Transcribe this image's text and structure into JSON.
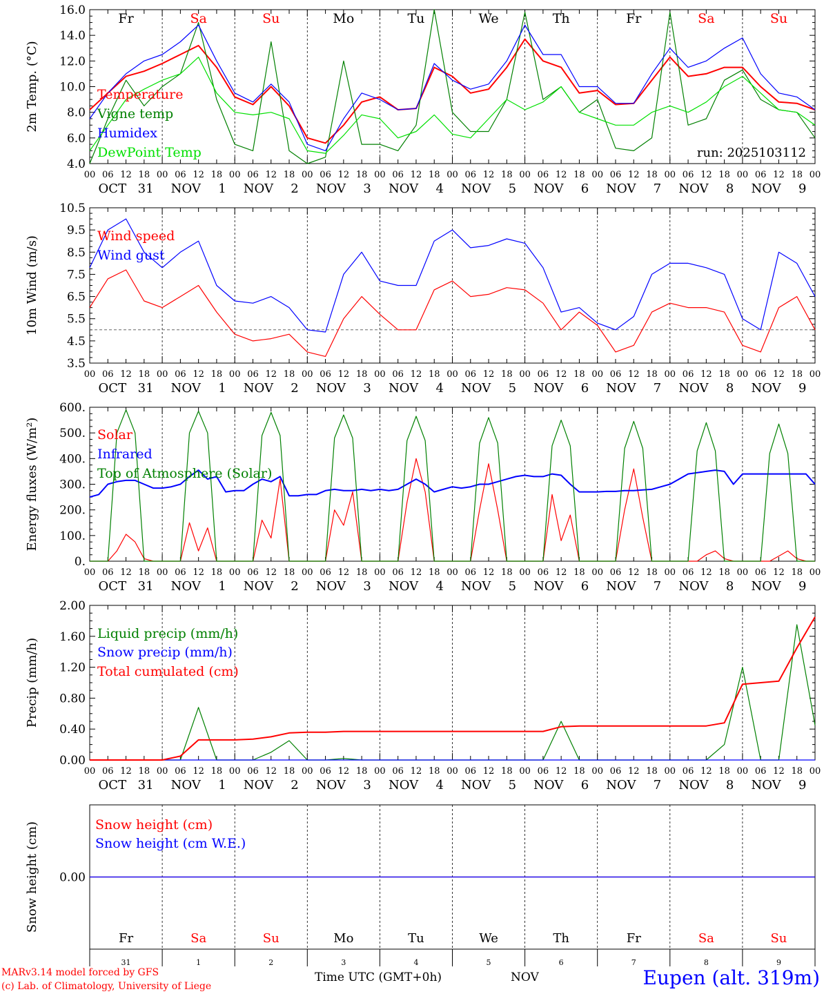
{
  "colors": {
    "red": "#ff0000",
    "green": "#008000",
    "blue": "#0000ff",
    "lightgreen": "#00e000",
    "grey": "#666666"
  },
  "days": [
    {
      "abbr": "Fr",
      "color": "#000000",
      "month": "OCT",
      "date": "31"
    },
    {
      "abbr": "Sa",
      "color": "#ff0000",
      "month": "NOV",
      "date": "1"
    },
    {
      "abbr": "Su",
      "color": "#ff0000",
      "month": "NOV",
      "date": "2"
    },
    {
      "abbr": "Mo",
      "color": "#000000",
      "month": "NOV",
      "date": "3"
    },
    {
      "abbr": "Tu",
      "color": "#000000",
      "month": "NOV",
      "date": "4"
    },
    {
      "abbr": "We",
      "color": "#000000",
      "month": "NOV",
      "date": "5"
    },
    {
      "abbr": "Th",
      "color": "#000000",
      "month": "NOV",
      "date": "6"
    },
    {
      "abbr": "Fr",
      "color": "#000000",
      "month": "NOV",
      "date": "7"
    },
    {
      "abbr": "Sa",
      "color": "#ff0000",
      "month": "NOV",
      "date": "8"
    },
    {
      "abbr": "Su",
      "color": "#ff0000",
      "month": "NOV",
      "date": "9"
    }
  ],
  "hour_ticks": [
    "00",
    "06",
    "12",
    "18"
  ],
  "footer": {
    "model": "MARv3.14 model forced by GFS",
    "lab": "(c) Lab. of Climatology, University of Liege",
    "time_label": "Time UTC (GMT+0h)",
    "month": "NOV",
    "station": "Eupen (alt. 319m)"
  },
  "chart_data": [
    {
      "type": "line",
      "ylabel": "2m Temp. (°C)",
      "ylim": [
        4,
        16
      ],
      "yticks": [
        "4.0",
        "6.0",
        "8.0",
        "10.0",
        "12.0",
        "14.0",
        "16.0"
      ],
      "annotation": "run: 2025103112",
      "x_hours": [
        0,
        6,
        12,
        18,
        24,
        30,
        36,
        42,
        48,
        54,
        60,
        66,
        72,
        78,
        84,
        90,
        96,
        102,
        108,
        114,
        120,
        126,
        132,
        138,
        144,
        150,
        156,
        162,
        168,
        174,
        180,
        186,
        192,
        198,
        204,
        210,
        216,
        222,
        228,
        234,
        240
      ],
      "series": [
        {
          "name": "Temperature",
          "color": "#ff0000",
          "values": [
            8.2,
            9.5,
            10.8,
            11.2,
            11.8,
            12.5,
            13.2,
            11.5,
            9.2,
            8.6,
            10.0,
            8.5,
            6.0,
            5.6,
            7.0,
            8.8,
            9.2,
            8.2,
            8.3,
            11.5,
            10.8,
            9.5,
            9.8,
            11.5,
            13.7,
            12.0,
            11.5,
            9.5,
            9.7,
            8.6,
            8.7,
            10.5,
            12.3,
            10.8,
            11.0,
            11.5,
            11.5,
            10.0,
            8.8,
            8.7,
            8.2
          ]
        },
        {
          "name": "Vigne temp",
          "color": "#008000",
          "values": [
            4.0,
            7.5,
            10.5,
            8.5,
            10.0,
            11.0,
            15.0,
            9.0,
            5.5,
            5.0,
            13.5,
            5.0,
            3.5,
            4.5,
            12.0,
            5.5,
            5.5,
            5.0,
            7.0,
            16.0,
            8.0,
            6.5,
            6.5,
            9.0,
            15.8,
            9.0,
            10.0,
            8.0,
            9.0,
            5.2,
            5.0,
            6.0,
            15.8,
            7.0,
            7.5,
            10.5,
            11.3,
            9.0,
            8.2,
            8.0,
            6.0
          ]
        },
        {
          "name": "Humidex",
          "color": "#0000ff",
          "values": [
            7.5,
            9.5,
            11.0,
            12.0,
            12.5,
            13.5,
            14.8,
            12.0,
            9.5,
            8.8,
            10.2,
            8.8,
            5.5,
            5.0,
            7.5,
            9.5,
            9.0,
            8.2,
            8.3,
            11.8,
            10.5,
            9.8,
            10.2,
            12.0,
            14.8,
            12.5,
            12.5,
            10.0,
            10.0,
            8.7,
            8.7,
            11.0,
            13.0,
            11.5,
            12.0,
            13.0,
            13.8,
            11.0,
            9.5,
            9.2,
            8.2
          ]
        },
        {
          "name": "DewPoint Temp",
          "color": "#00e000",
          "values": [
            5.0,
            7.0,
            9.0,
            9.8,
            10.5,
            11.0,
            12.3,
            9.5,
            8.0,
            7.8,
            8.0,
            7.5,
            5.0,
            4.8,
            6.2,
            7.8,
            7.5,
            6.0,
            6.5,
            7.8,
            6.3,
            6.0,
            7.5,
            9.0,
            8.2,
            8.8,
            10.0,
            8.0,
            7.5,
            7.0,
            7.0,
            8.0,
            8.5,
            8.0,
            8.8,
            10.0,
            10.8,
            9.5,
            8.2,
            8.0,
            7.0
          ]
        }
      ]
    },
    {
      "type": "line",
      "ylabel": "10m Wind (m/s)",
      "ylim": [
        3.5,
        10.5
      ],
      "yticks": [
        "3.5",
        "4.5",
        "5.5",
        "6.5",
        "7.5",
        "8.5",
        "9.5",
        "10.5"
      ],
      "reference_line": 5.0,
      "x_hours": [
        0,
        6,
        12,
        18,
        24,
        30,
        36,
        42,
        48,
        54,
        60,
        66,
        72,
        78,
        84,
        90,
        96,
        102,
        108,
        114,
        120,
        126,
        132,
        138,
        144,
        150,
        156,
        162,
        168,
        174,
        180,
        186,
        192,
        198,
        204,
        210,
        216,
        222,
        228,
        234,
        240
      ],
      "series": [
        {
          "name": "Wind speed",
          "color": "#ff0000",
          "values": [
            6.0,
            7.3,
            7.7,
            6.3,
            6.0,
            6.5,
            7.0,
            5.8,
            4.8,
            4.5,
            4.6,
            4.8,
            4.0,
            3.8,
            5.5,
            6.5,
            5.7,
            5.0,
            5.0,
            6.8,
            7.2,
            6.5,
            6.6,
            6.9,
            6.8,
            6.2,
            5.0,
            5.8,
            5.2,
            4.0,
            4.3,
            5.8,
            6.2,
            6.0,
            6.0,
            5.8,
            4.3,
            4.0,
            6.0,
            6.5,
            5.0
          ]
        },
        {
          "name": "Wind gust",
          "color": "#0000ff",
          "values": [
            7.8,
            9.5,
            10.0,
            8.5,
            7.8,
            8.5,
            9.0,
            7.0,
            6.3,
            6.2,
            6.5,
            6.0,
            5.0,
            4.9,
            7.5,
            8.5,
            7.2,
            7.0,
            7.0,
            9.0,
            9.5,
            8.7,
            8.8,
            9.1,
            8.9,
            7.8,
            5.8,
            6.0,
            5.3,
            5.0,
            5.6,
            7.5,
            8.0,
            8.0,
            7.8,
            7.5,
            5.5,
            5.0,
            8.5,
            8.0,
            6.5
          ]
        }
      ]
    },
    {
      "type": "line",
      "ylabel": "Energy fluxes (W/m²)",
      "ylim": [
        0,
        600
      ],
      "yticks": [
        "0.",
        "100.",
        "200.",
        "300.",
        "400.",
        "500.",
        "600."
      ],
      "x_hours": [
        0,
        3,
        6,
        9,
        12,
        15,
        18,
        21,
        24,
        27,
        30,
        33,
        36,
        39,
        42,
        45,
        48,
        51,
        54,
        57,
        60,
        63,
        66,
        69,
        72,
        75,
        78,
        81,
        84,
        87,
        90,
        93,
        96,
        99,
        102,
        105,
        108,
        111,
        114,
        117,
        120,
        123,
        126,
        129,
        132,
        135,
        138,
        141,
        144,
        147,
        150,
        153,
        156,
        159,
        162,
        165,
        168,
        171,
        174,
        177,
        180,
        183,
        186,
        189,
        192,
        195,
        198,
        201,
        204,
        207,
        210,
        213,
        216,
        219,
        222,
        225,
        228,
        231,
        234,
        237,
        240
      ],
      "series": [
        {
          "name": "Solar",
          "color": "#ff0000",
          "values": [
            0,
            0,
            0,
            40,
            105,
            75,
            10,
            0,
            0,
            0,
            0,
            150,
            40,
            130,
            0,
            0,
            0,
            0,
            0,
            160,
            90,
            320,
            0,
            0,
            0,
            0,
            0,
            200,
            140,
            270,
            0,
            0,
            0,
            0,
            0,
            230,
            400,
            270,
            0,
            0,
            0,
            0,
            0,
            200,
            380,
            200,
            0,
            0,
            0,
            0,
            0,
            260,
            80,
            180,
            0,
            0,
            0,
            0,
            0,
            200,
            360,
            170,
            0,
            0,
            0,
            0,
            0,
            0,
            25,
            40,
            10,
            0,
            0,
            0,
            0,
            0,
            20,
            40,
            10,
            0,
            0
          ]
        },
        {
          "name": "Infrared",
          "color": "#0000ff",
          "values": [
            250,
            260,
            300,
            310,
            315,
            315,
            300,
            285,
            285,
            290,
            300,
            330,
            355,
            320,
            330,
            270,
            275,
            275,
            300,
            320,
            310,
            330,
            255,
            255,
            260,
            260,
            275,
            280,
            275,
            275,
            280,
            275,
            280,
            275,
            280,
            300,
            320,
            300,
            270,
            280,
            290,
            285,
            290,
            300,
            300,
            310,
            320,
            330,
            335,
            330,
            330,
            340,
            335,
            300,
            270,
            270,
            270,
            272,
            272,
            275,
            275,
            278,
            280,
            290,
            300,
            320,
            340,
            345,
            350,
            355,
            350,
            300,
            340,
            340,
            340,
            340,
            340,
            340,
            340,
            340,
            300
          ]
        },
        {
          "name": "Top of Atmosphere (Solar)",
          "color": "#008000",
          "values": [
            0,
            0,
            0,
            500,
            590,
            500,
            0,
            0,
            0,
            0,
            0,
            500,
            585,
            500,
            0,
            0,
            0,
            0,
            0,
            490,
            580,
            490,
            0,
            0,
            0,
            0,
            0,
            480,
            570,
            480,
            0,
            0,
            0,
            0,
            0,
            470,
            565,
            470,
            0,
            0,
            0,
            0,
            0,
            460,
            560,
            460,
            0,
            0,
            0,
            0,
            0,
            450,
            550,
            450,
            0,
            0,
            0,
            0,
            0,
            440,
            545,
            440,
            0,
            0,
            0,
            0,
            0,
            430,
            540,
            430,
            0,
            0,
            0,
            0,
            0,
            420,
            535,
            420,
            0,
            0,
            0
          ]
        }
      ]
    },
    {
      "type": "line",
      "ylabel": "Precip (mm/h)",
      "ylim": [
        0,
        2
      ],
      "yticks": [
        "0.00",
        "0.40",
        "0.80",
        "1.20",
        "1.60",
        "2.00"
      ],
      "x_hours": [
        0,
        6,
        12,
        18,
        24,
        30,
        36,
        42,
        48,
        54,
        60,
        66,
        72,
        78,
        84,
        90,
        96,
        102,
        108,
        114,
        120,
        126,
        132,
        138,
        144,
        150,
        156,
        162,
        168,
        174,
        180,
        186,
        192,
        198,
        204,
        210,
        216,
        222,
        228,
        234,
        240
      ],
      "series": [
        {
          "name": "Liquid precip (mm/h)",
          "color": "#008000",
          "values": [
            0,
            0,
            0,
            0,
            0,
            0,
            0.68,
            0,
            0,
            0,
            0.1,
            0.25,
            0,
            0,
            0.02,
            0,
            0,
            0,
            0,
            0,
            0,
            0,
            0,
            0,
            0,
            0,
            0.5,
            0,
            0,
            0,
            0,
            0,
            0,
            0,
            0,
            0.2,
            1.2,
            0,
            0,
            1.75,
            0.45
          ]
        },
        {
          "name": "Snow precip (mm/h)",
          "color": "#0000ff",
          "values": [
            0,
            0,
            0,
            0,
            0,
            0,
            0,
            0,
            0,
            0,
            0,
            0,
            0,
            0,
            0,
            0,
            0,
            0,
            0,
            0,
            0,
            0,
            0,
            0,
            0,
            0,
            0,
            0,
            0,
            0,
            0,
            0,
            0,
            0,
            0,
            0,
            0,
            0,
            0,
            0,
            0
          ]
        },
        {
          "name": "Total cumulated (cm)",
          "color": "#ff0000",
          "values": [
            0,
            0,
            0,
            0,
            0,
            0.05,
            0.26,
            0.26,
            0.26,
            0.27,
            0.3,
            0.35,
            0.36,
            0.36,
            0.37,
            0.37,
            0.37,
            0.37,
            0.37,
            0.37,
            0.37,
            0.37,
            0.37,
            0.37,
            0.37,
            0.37,
            0.43,
            0.44,
            0.44,
            0.44,
            0.44,
            0.44,
            0.44,
            0.44,
            0.44,
            0.48,
            0.98,
            1.0,
            1.02,
            1.45,
            1.85
          ]
        }
      ]
    },
    {
      "type": "line",
      "ylabel": "Snow height (cm)",
      "ylim": [
        -1,
        1
      ],
      "yticks": [
        "0.00"
      ],
      "x_hours": [
        0,
        240
      ],
      "series": [
        {
          "name": "Snow height (cm)",
          "color": "#ff0000",
          "values": [
            0,
            0
          ]
        },
        {
          "name": "Snow height (cm W.E.)",
          "color": "#0000ff",
          "values": [
            0,
            0
          ]
        }
      ]
    }
  ]
}
